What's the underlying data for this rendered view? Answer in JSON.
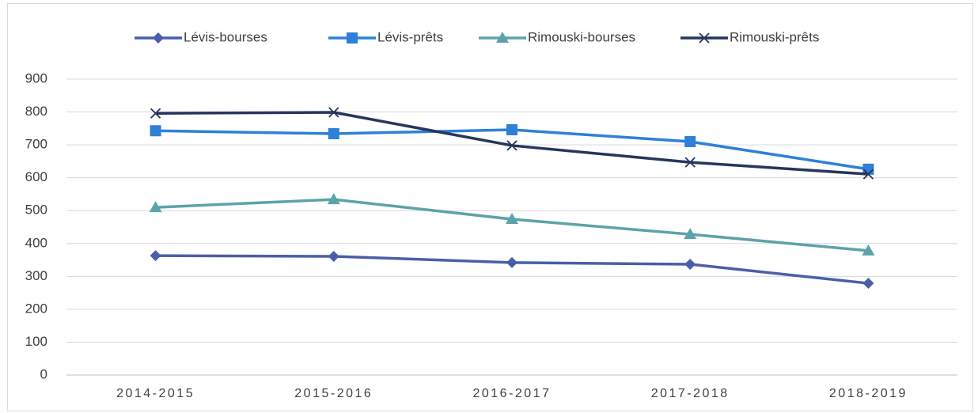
{
  "chart_data": {
    "type": "line",
    "categories": [
      "2014-2015",
      "2015-2016",
      "2016-2017",
      "2017-2018",
      "2018-2019"
    ],
    "series": [
      {
        "name": "Lévis-bourses",
        "color": "#4a5fa8",
        "marker": "diamond",
        "values": [
          363,
          361,
          342,
          337,
          279
        ]
      },
      {
        "name": "Lévis-prêts",
        "color": "#2e80d8",
        "marker": "square",
        "values": [
          743,
          734,
          746,
          710,
          626
        ]
      },
      {
        "name": "Rimouski-bourses",
        "color": "#5ca3a9",
        "marker": "triangle",
        "values": [
          510,
          534,
          474,
          428,
          378
        ]
      },
      {
        "name": "Rimouski-prêts",
        "color": "#26365c",
        "marker": "x",
        "values": [
          796,
          799,
          698,
          647,
          611
        ]
      }
    ],
    "ylim": [
      0,
      900
    ],
    "yticks": [
      0,
      100,
      200,
      300,
      400,
      500,
      600,
      700,
      800,
      900
    ],
    "grid": true,
    "legend": "top"
  }
}
